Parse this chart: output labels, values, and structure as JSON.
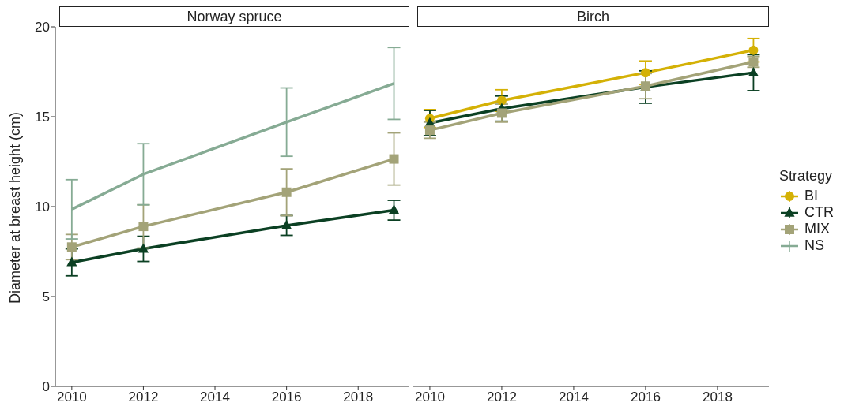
{
  "chart_data": [
    {
      "type": "line",
      "title": "Norway spruce",
      "ylabel": "Diameter at breast height (cm)",
      "x": [
        2010,
        2012,
        2016,
        2019
      ],
      "xlim": [
        2009.54,
        2019.43
      ],
      "xticks": [
        2010,
        2012,
        2014,
        2016,
        2018
      ],
      "ylim": [
        0,
        20
      ],
      "yticks": [
        0,
        5,
        10,
        15,
        20
      ],
      "legend": "right",
      "line_style": "solid",
      "series": [
        {
          "name": "CTR",
          "color": "#0b4023",
          "marker": "triangle",
          "values": [
            6.9,
            7.65,
            8.95,
            9.8
          ],
          "errors": [
            0.75,
            0.7,
            0.55,
            0.55
          ]
        },
        {
          "name": "MIX",
          "color": "#a3a378",
          "marker": "square",
          "values": [
            7.75,
            8.9,
            10.8,
            12.65
          ],
          "errors": [
            0.7,
            1.2,
            1.3,
            1.45
          ]
        },
        {
          "name": "NS",
          "color": "#86ab94",
          "marker": "none",
          "values": [
            9.85,
            11.8,
            14.7,
            16.85
          ],
          "errors": [
            1.65,
            1.7,
            1.9,
            2.0
          ]
        }
      ]
    },
    {
      "type": "line",
      "title": "Birch",
      "x": [
        2010,
        2012,
        2016,
        2019
      ],
      "xlim": [
        2009.54,
        2019.43
      ],
      "xticks": [
        2010,
        2012,
        2014,
        2016,
        2018
      ],
      "ylim": [
        0,
        20
      ],
      "yticks": [
        0,
        5,
        10,
        15,
        20
      ],
      "tick_labels": "x",
      "legend": "right",
      "legend_title": "Strategy",
      "line_style": "solid",
      "series": [
        {
          "name": "BI",
          "color": "#d4b106",
          "marker": "circle",
          "values": [
            14.9,
            15.9,
            17.45,
            18.7
          ],
          "errors": [
            0.5,
            0.6,
            0.65,
            0.65
          ]
        },
        {
          "name": "CTR",
          "color": "#0b4023",
          "marker": "triangle",
          "values": [
            14.65,
            15.45,
            16.65,
            17.45
          ],
          "errors": [
            0.7,
            0.7,
            0.9,
            1.0
          ]
        },
        {
          "name": "MIX",
          "color": "#a3a378",
          "marker": "square",
          "values": [
            14.25,
            15.2,
            16.7,
            18.05
          ],
          "errors": [
            0.45,
            0.5,
            0.7,
            0.3
          ]
        }
      ]
    }
  ]
}
